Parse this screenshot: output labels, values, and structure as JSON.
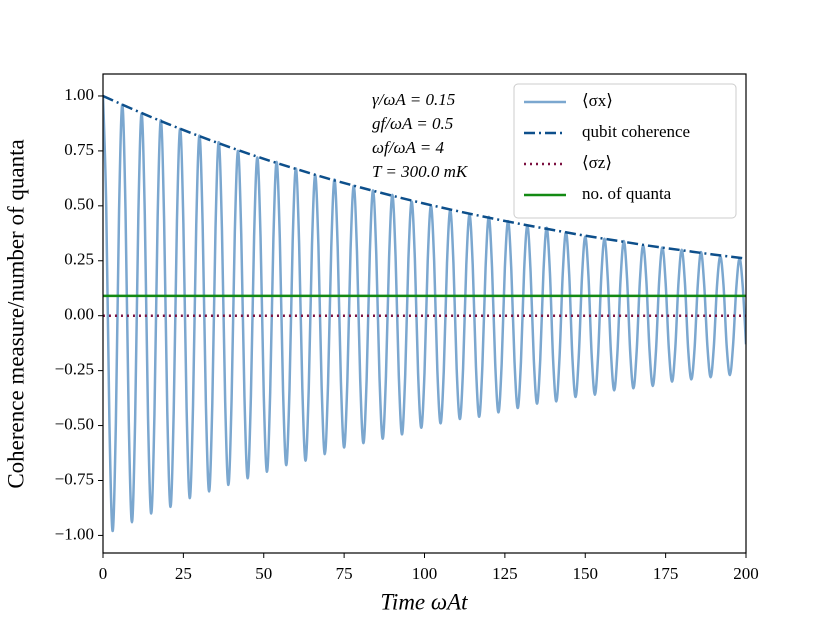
{
  "chart_data": {
    "type": "line",
    "xlabel": "Time ωAt",
    "ylabel": "Coherence measure/number of quanta",
    "annotations": [
      "γ/ωA = 0.15",
      "gf/ωA = 0.5",
      "ωf/ωA = 4",
      "T = 300.0 mK"
    ],
    "xlim": [
      0,
      200
    ],
    "ylim": [
      -1.08,
      1.1
    ],
    "xticks": [
      0,
      25,
      50,
      75,
      100,
      125,
      150,
      175,
      200
    ],
    "yticks": [
      {
        "value": -1,
        "label": "−1.00"
      },
      {
        "value": -0.75,
        "label": "−0.75"
      },
      {
        "value": -0.5,
        "label": "−0.50"
      },
      {
        "value": -0.25,
        "label": "−0.25"
      },
      {
        "value": 0,
        "label": "0.00"
      },
      {
        "value": 0.25,
        "label": "0.25"
      },
      {
        "value": 0.5,
        "label": "0.50"
      },
      {
        "value": 0.75,
        "label": "0.75"
      },
      {
        "value": 1,
        "label": "1.00"
      }
    ],
    "legend": "upper right",
    "series": [
      {
        "name": "⟨σx⟩",
        "color": "#7ba7cf",
        "style": "solid",
        "x": [
          0,
          1,
          2,
          3,
          4,
          5,
          6,
          7,
          8,
          9,
          10,
          11,
          12,
          13,
          14,
          15,
          16,
          17,
          18,
          19,
          20,
          21,
          22,
          23,
          24,
          25,
          26,
          27,
          28,
          29,
          30,
          31,
          32,
          33,
          34,
          35,
          36,
          37,
          38,
          39,
          40,
          41,
          42,
          43,
          44,
          45,
          46,
          47,
          48,
          49,
          50,
          51,
          52,
          53,
          54,
          55,
          56,
          57,
          58,
          59,
          60,
          61,
          62,
          63,
          64,
          65,
          66,
          67,
          68,
          69,
          70,
          71,
          72,
          73,
          74,
          75,
          76,
          77,
          78,
          79,
          80,
          81,
          82,
          83,
          84,
          85,
          86,
          87,
          88,
          89,
          90,
          91,
          92,
          93,
          94,
          95,
          96,
          97,
          98,
          99,
          100,
          101,
          102,
          103,
          104,
          105,
          106,
          107,
          108,
          109,
          110,
          111,
          112,
          113,
          114,
          115,
          116,
          117,
          118,
          119,
          120,
          121,
          122,
          123,
          124,
          125,
          126,
          127,
          128,
          129,
          130,
          131,
          132,
          133,
          134,
          135,
          136,
          137,
          138,
          139,
          140,
          141,
          142,
          143,
          144,
          145,
          146,
          147,
          148,
          149,
          150,
          151,
          152,
          153,
          154,
          155,
          156,
          157,
          158,
          159,
          160,
          161,
          162,
          163,
          164,
          165,
          166,
          167,
          168,
          169,
          170,
          171,
          172,
          173,
          174,
          175,
          176,
          177,
          178,
          179,
          180,
          181,
          182,
          183,
          184,
          185,
          186,
          187,
          188,
          189,
          190,
          191,
          192,
          193,
          194,
          195,
          196,
          197,
          198,
          199,
          200
        ],
        "values": [
          1.0,
          0.5,
          -0.49,
          -0.98,
          -0.49,
          0.48,
          0.96,
          0.48,
          -0.47,
          -0.94,
          -0.47,
          0.46,
          0.92,
          0.46,
          -0.46,
          -0.9,
          -0.45,
          0.45,
          0.89,
          0.44,
          -0.44,
          -0.87,
          -0.43,
          0.43,
          0.85,
          0.42,
          -0.42,
          -0.83,
          -0.41,
          0.41,
          0.82,
          0.41,
          -0.4,
          -0.8,
          -0.4,
          0.4,
          0.79,
          0.39,
          -0.39,
          -0.77,
          -0.38,
          0.38,
          0.75,
          0.37,
          -0.37,
          -0.74,
          -0.37,
          0.36,
          0.72,
          0.36,
          -0.36,
          -0.71,
          -0.35,
          0.35,
          0.7,
          0.35,
          -0.34,
          -0.68,
          -0.34,
          0.34,
          0.67,
          0.33,
          -0.33,
          -0.66,
          -0.33,
          0.32,
          0.64,
          0.32,
          -0.32,
          -0.63,
          -0.31,
          0.31,
          0.62,
          0.31,
          -0.3,
          -0.6,
          -0.3,
          0.3,
          0.59,
          0.29,
          -0.29,
          -0.58,
          -0.29,
          0.29,
          0.57,
          0.28,
          -0.28,
          -0.56,
          -0.28,
          0.27,
          0.55,
          0.27,
          -0.27,
          -0.54,
          -0.27,
          0.26,
          0.52,
          0.26,
          -0.26,
          -0.51,
          -0.26,
          0.25,
          0.5,
          0.25,
          -0.25,
          -0.49,
          -0.25,
          0.24,
          0.48,
          0.24,
          -0.24,
          -0.47,
          -0.24,
          0.23,
          0.46,
          0.23,
          -0.23,
          -0.46,
          -0.23,
          0.22,
          0.45,
          0.22,
          -0.22,
          -0.44,
          -0.22,
          0.22,
          0.43,
          0.21,
          -0.21,
          -0.42,
          -0.21,
          0.21,
          0.41,
          0.2,
          -0.2,
          -0.4,
          -0.2,
          0.2,
          0.4,
          0.2,
          -0.2,
          -0.39,
          -0.19,
          0.19,
          0.38,
          0.19,
          -0.19,
          -0.37,
          -0.18,
          0.18,
          0.36,
          0.18,
          -0.18,
          -0.36,
          -0.18,
          0.18,
          0.35,
          0.17,
          -0.17,
          -0.34,
          -0.17,
          0.17,
          0.34,
          0.17,
          -0.17,
          -0.33,
          -0.16,
          0.16,
          0.32,
          0.16,
          -0.16,
          -0.32,
          -0.16,
          0.16,
          0.31,
          0.15,
          -0.15,
          -0.3,
          -0.15,
          0.15,
          0.3,
          0.15,
          -0.15,
          -0.29,
          -0.15,
          0.14,
          0.29,
          0.14,
          -0.14,
          -0.28,
          -0.14,
          0.14,
          0.27,
          0.14,
          -0.14,
          -0.27,
          -0.13,
          0.13,
          0.26,
          0.13,
          -0.13
        ]
      },
      {
        "name": "qubit coherence",
        "color": "#0d4f8b",
        "style": "dashdot",
        "x": [
          0,
          10,
          20,
          30,
          40,
          50,
          60,
          70,
          80,
          90,
          100,
          110,
          120,
          130,
          140,
          150,
          160,
          170,
          180,
          190,
          200
        ],
        "values": [
          1.0,
          0.935,
          0.874,
          0.817,
          0.764,
          0.714,
          0.668,
          0.624,
          0.584,
          0.546,
          0.51,
          0.477,
          0.446,
          0.417,
          0.39,
          0.364,
          0.341,
          0.318,
          0.298,
          0.278,
          0.26
        ]
      },
      {
        "name": "⟨σz⟩",
        "color": "#7b1040",
        "style": "dotted",
        "x": [
          0,
          200
        ],
        "values": [
          0,
          0
        ]
      },
      {
        "name": "no. of quanta",
        "color": "#138a13",
        "style": "solid",
        "x": [
          0,
          200
        ],
        "values": [
          0.09,
          0.09
        ]
      }
    ]
  }
}
